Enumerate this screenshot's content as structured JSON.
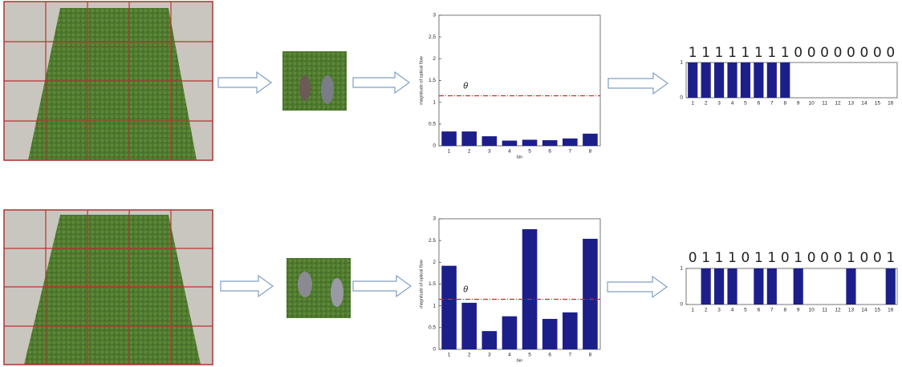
{
  "chart_data": [
    {
      "type": "bar",
      "categories": [
        "1",
        "2",
        "3",
        "4",
        "5",
        "6",
        "7",
        "8"
      ],
      "values": [
        0.33,
        0.33,
        0.22,
        0.12,
        0.14,
        0.13,
        0.17,
        0.28
      ],
      "color": "#1c1f8a",
      "ylim": [
        0,
        3
      ],
      "yticks": [
        0,
        0.5,
        1,
        1.5,
        2,
        2.5,
        3
      ],
      "y_label": "magnitude of optical flow",
      "x_label": "bin",
      "threshold": 1.15,
      "threshold_color": "#d62728",
      "annotation": "θ"
    },
    {
      "type": "bar",
      "categories": [
        "1",
        "2",
        "3",
        "4",
        "5",
        "6",
        "7",
        "8",
        "9",
        "10",
        "11",
        "12",
        "13",
        "14",
        "15",
        "16"
      ],
      "values": [
        1,
        1,
        1,
        1,
        1,
        1,
        1,
        1,
        0,
        0,
        0,
        0,
        0,
        0,
        0,
        0
      ],
      "color": "#1c1f8a",
      "ylim": [
        0,
        1
      ],
      "yticks": [
        0,
        1
      ],
      "show_value_labels": true
    },
    {
      "type": "bar",
      "categories": [
        "1",
        "2",
        "3",
        "4",
        "5",
        "6",
        "7",
        "8"
      ],
      "values": [
        1.92,
        1.07,
        0.42,
        0.76,
        2.76,
        0.7,
        0.85,
        2.54
      ],
      "color": "#1c1f8a",
      "ylim": [
        0,
        3
      ],
      "yticks": [
        0,
        0.5,
        1,
        1.5,
        2,
        2.5,
        3
      ],
      "y_label": "magnitude of optical flow",
      "x_label": "bin",
      "threshold": 1.15,
      "threshold_color": "#d62728",
      "annotation": "θ"
    },
    {
      "type": "bar",
      "categories": [
        "1",
        "2",
        "3",
        "4",
        "5",
        "6",
        "7",
        "8",
        "9",
        "10",
        "11",
        "12",
        "13",
        "14",
        "15",
        "16"
      ],
      "values": [
        0,
        1,
        1,
        1,
        0,
        1,
        1,
        0,
        1,
        0,
        0,
        0,
        1,
        0,
        0,
        1
      ],
      "color": "#1c1f8a",
      "ylim": [
        0,
        1
      ],
      "yticks": [
        0,
        1
      ],
      "show_value_labels": true
    }
  ]
}
